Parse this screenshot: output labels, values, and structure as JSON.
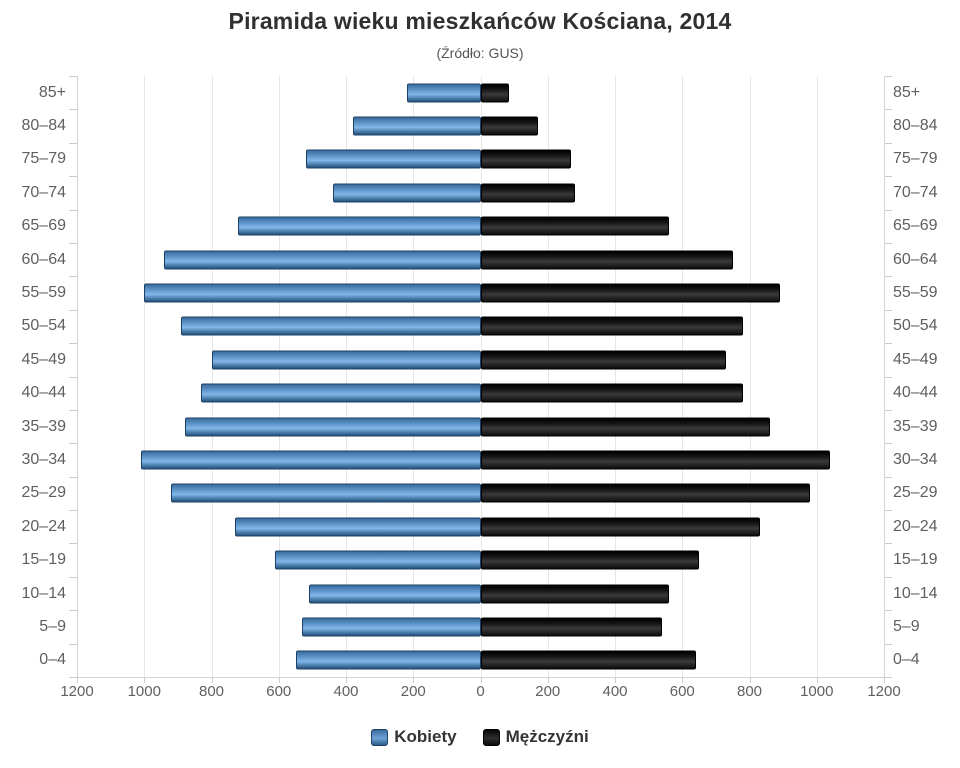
{
  "title": "Piramida wieku mieszkańców Kościana, 2014",
  "subtitle": "(Źródło: GUS)",
  "legend": {
    "items": [
      {
        "label": "Kobiety",
        "color": "#5b8fc7"
      },
      {
        "label": "Mężczyźni",
        "color": "#151515"
      }
    ]
  },
  "chart_data": {
    "type": "bar",
    "variant": "population-pyramid",
    "title": "Piramida wieku mieszkańców Kościana, 2014",
    "subtitle": "(Źródło: GUS)",
    "categories": [
      "85+",
      "80–84",
      "75–79",
      "70–74",
      "65–69",
      "60–64",
      "55–59",
      "50–54",
      "45–49",
      "40–44",
      "35–39",
      "30–34",
      "25–29",
      "20–24",
      "15–19",
      "10–14",
      "5–9",
      "0–4"
    ],
    "series": [
      {
        "name": "Kobiety",
        "side": "left",
        "color": "#5b8fc7",
        "values": [
          220,
          380,
          520,
          440,
          720,
          940,
          1000,
          890,
          800,
          830,
          880,
          1010,
          920,
          730,
          610,
          510,
          530,
          550
        ]
      },
      {
        "name": "Mężczyźni",
        "side": "right",
        "color": "#151515",
        "values": [
          85,
          170,
          270,
          280,
          560,
          750,
          890,
          780,
          730,
          780,
          860,
          1040,
          980,
          830,
          650,
          560,
          540,
          640
        ]
      }
    ],
    "x_axis": {
      "max": 1200,
      "tick_interval": 200,
      "tick_values": [
        -1200,
        -1000,
        -800,
        -600,
        -400,
        -200,
        0,
        200,
        400,
        600,
        800,
        1000,
        1200
      ],
      "tick_labels": [
        "1200",
        "1000",
        "800",
        "600",
        "400",
        "200",
        "0",
        "200",
        "400",
        "600",
        "800",
        "1000",
        "1200"
      ]
    },
    "grid": true,
    "legend_position": "bottom"
  },
  "colors": {
    "female_bar": "#5b8fc7",
    "male_bar": "#151515",
    "gridline": "#e6e6e6",
    "axis_line": "#d4d4d4",
    "tick": "#cccccc",
    "label_text": "#606060",
    "title_text": "#303030",
    "subtitle_text": "#555555",
    "legend_text": "#333333",
    "background": "#ffffff"
  }
}
